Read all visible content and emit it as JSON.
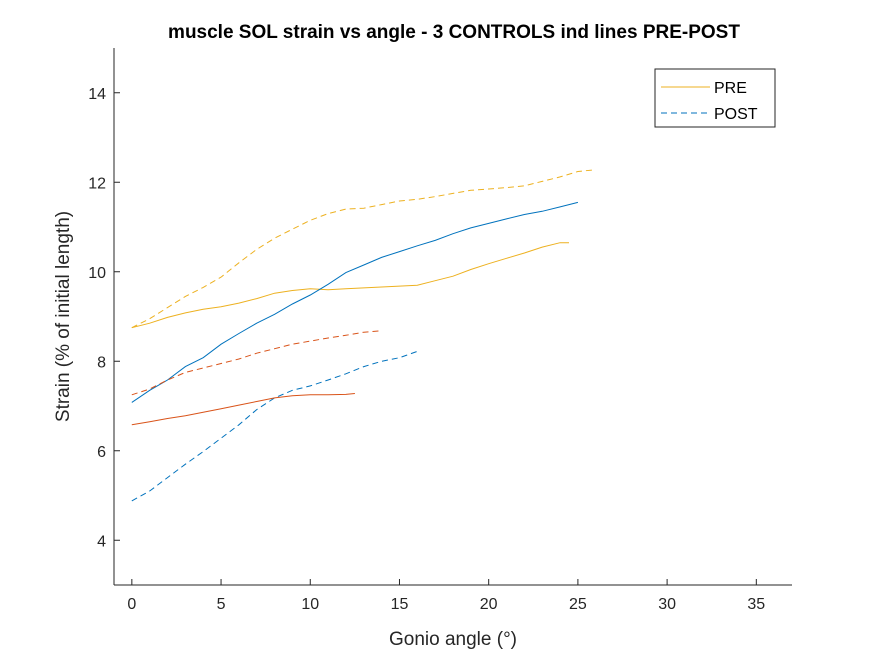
{
  "chart_data": {
    "type": "line",
    "title": "muscle SOL strain vs angle - 3 CONTROLS ind lines PRE-POST",
    "xlabel": "Gonio angle (°)",
    "ylabel": "Strain (% of initial length)",
    "xlim": [
      -1,
      37
    ],
    "ylim": [
      3,
      15
    ],
    "xticks": [
      0,
      5,
      10,
      15,
      20,
      25,
      30,
      35
    ],
    "yticks": [
      4,
      6,
      8,
      10,
      12,
      14
    ],
    "grid": false,
    "legend_position": "top-right",
    "legend": [
      {
        "label": "PRE",
        "style": "solid",
        "color": "#EDB120"
      },
      {
        "label": "POST",
        "style": "dashed",
        "color": "#0072BD"
      }
    ],
    "series": [
      {
        "condition": "PRE",
        "style": "solid",
        "color": "#EDB120",
        "x": [
          0,
          1,
          2,
          3,
          4,
          5,
          6,
          7,
          8,
          9,
          10,
          11,
          12,
          13,
          14,
          15,
          16,
          17,
          18,
          19,
          20,
          21,
          22,
          23,
          24,
          24.5
        ],
        "y": [
          8.75,
          8.85,
          8.98,
          9.08,
          9.16,
          9.22,
          9.3,
          9.4,
          9.52,
          9.58,
          9.62,
          9.6,
          9.62,
          9.64,
          9.66,
          9.68,
          9.7,
          9.8,
          9.9,
          10.05,
          10.18,
          10.3,
          10.42,
          10.55,
          10.65,
          10.65
        ]
      },
      {
        "condition": "POST",
        "style": "dashed",
        "color": "#EDB120",
        "x": [
          0,
          1,
          2,
          3,
          4,
          5,
          6,
          7,
          8,
          9,
          10,
          11,
          12,
          13,
          14,
          15,
          16,
          17,
          18,
          19,
          20,
          21,
          22,
          23,
          24,
          25,
          26
        ],
        "y": [
          8.75,
          8.95,
          9.2,
          9.45,
          9.65,
          9.88,
          10.2,
          10.5,
          10.75,
          10.95,
          11.15,
          11.3,
          11.4,
          11.42,
          11.5,
          11.58,
          11.62,
          11.68,
          11.75,
          11.82,
          11.85,
          11.88,
          11.92,
          12.02,
          12.12,
          12.24,
          12.28
        ]
      },
      {
        "condition": "PRE",
        "style": "solid",
        "color": "#0072BD",
        "x": [
          0,
          1,
          2,
          3,
          4,
          5,
          6,
          7,
          8,
          9,
          10,
          11,
          12,
          13,
          14,
          15,
          16,
          17,
          18,
          19,
          20,
          21,
          22,
          23,
          24,
          25
        ],
        "y": [
          7.08,
          7.35,
          7.58,
          7.88,
          8.08,
          8.38,
          8.62,
          8.85,
          9.05,
          9.28,
          9.48,
          9.72,
          9.98,
          10.15,
          10.32,
          10.45,
          10.58,
          10.7,
          10.85,
          10.98,
          11.08,
          11.18,
          11.28,
          11.35,
          11.45,
          11.55
        ]
      },
      {
        "condition": "POST",
        "style": "dashed",
        "color": "#0072BD",
        "x": [
          0,
          1,
          2,
          3,
          4,
          5,
          6,
          7,
          8,
          9,
          10,
          11,
          12,
          13,
          14,
          15,
          16
        ],
        "y": [
          4.88,
          5.1,
          5.4,
          5.7,
          5.98,
          6.28,
          6.58,
          6.92,
          7.18,
          7.35,
          7.45,
          7.58,
          7.72,
          7.88,
          8.0,
          8.08,
          8.22
        ]
      },
      {
        "condition": "PRE",
        "style": "solid",
        "color": "#D95319",
        "x": [
          0,
          1,
          2,
          3,
          4,
          5,
          6,
          7,
          8,
          9,
          10,
          11,
          12,
          12.5
        ],
        "y": [
          6.58,
          6.65,
          6.72,
          6.78,
          6.86,
          6.94,
          7.02,
          7.1,
          7.18,
          7.23,
          7.25,
          7.25,
          7.26,
          7.28
        ]
      },
      {
        "condition": "POST",
        "style": "dashed",
        "color": "#D95319",
        "x": [
          0,
          1,
          2,
          3,
          4,
          5,
          6,
          7,
          8,
          9,
          10,
          11,
          12,
          13,
          14
        ],
        "y": [
          7.25,
          7.38,
          7.58,
          7.75,
          7.85,
          7.95,
          8.05,
          8.18,
          8.28,
          8.38,
          8.45,
          8.52,
          8.58,
          8.65,
          8.68
        ]
      }
    ]
  }
}
